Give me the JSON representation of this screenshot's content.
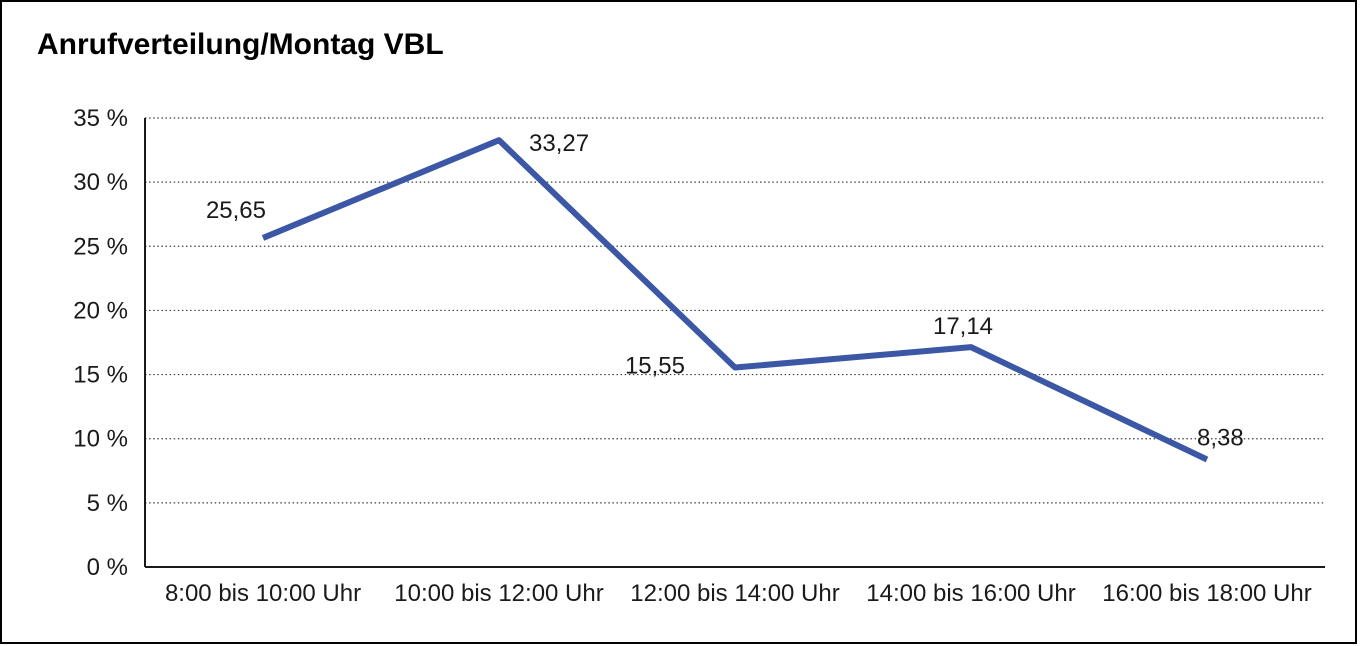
{
  "window": {
    "background_color": "#ffffff",
    "border_color": "#000000"
  },
  "chart_data": {
    "type": "line",
    "title": "Anrufverteilung/Montag VBL",
    "categories": [
      "8:00 bis 10:00 Uhr",
      "10:00 bis 12:00 Uhr",
      "12:00 bis 14:00 Uhr",
      "14:00 bis 16:00 Uhr",
      "16:00 bis 18:00 Uhr"
    ],
    "series": [
      {
        "name": "Anrufverteilung Montag VBL",
        "values": [
          25.65,
          33.27,
          15.55,
          17.14,
          8.38
        ],
        "value_labels": [
          "25,65",
          "33,27",
          "15,55",
          "17,14",
          "8,38"
        ]
      }
    ],
    "xlabel": "",
    "ylabel": "",
    "ylim": [
      0,
      35
    ],
    "y_ticks": {
      "values": [
        0,
        5,
        10,
        15,
        20,
        25,
        30,
        35
      ],
      "labels": [
        "0 %",
        "5 %",
        "10 %",
        "15 %",
        "20 %",
        "25 %",
        "30 %",
        "35 %"
      ]
    },
    "grid": "horizontal-dotted",
    "legend_position": "none",
    "line_color": "#3B57A5",
    "axis_color": "#1a1a1a",
    "grid_color": "#3f3f3f",
    "text_color": "#1a1a1a"
  }
}
